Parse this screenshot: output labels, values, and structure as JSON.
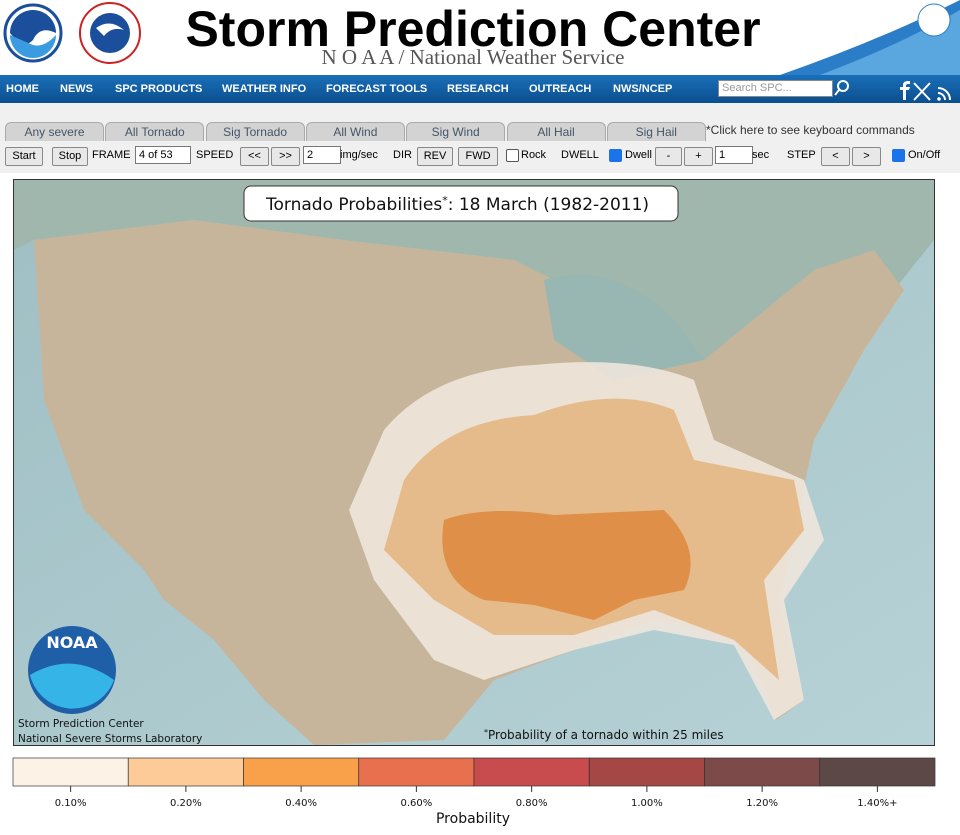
{
  "header": {
    "title": "Storm Prediction Center",
    "subtitle": "N O A A / National Weather Service"
  },
  "nav": {
    "items": [
      "HOME",
      "NEWS",
      "SPC PRODUCTS",
      "WEATHER INFO",
      "FORECAST TOOLS",
      "RESEARCH",
      "OUTREACH",
      "NWS/NCEP"
    ],
    "search_placeholder": "Search SPC..."
  },
  "tabs": {
    "items": [
      "Any severe",
      "All Tornado",
      "Sig Tornado",
      "All Wind",
      "Sig Wind",
      "All Hail",
      "Sig Hail"
    ],
    "keyboard_note": "*Click here to see keyboard commands"
  },
  "controls": {
    "start": "Start",
    "stop": "Stop",
    "frame_label": "FRAME",
    "frame_value": "4 of 53",
    "speed_label": "SPEED",
    "speed_down": "<<",
    "speed_up": ">>",
    "speed_value": "2",
    "speed_unit": "img/sec",
    "dir_label": "DIR",
    "rev": "REV",
    "fwd": "FWD",
    "rock": "Rock",
    "dwell_label": "DWELL",
    "dwell": "Dwell",
    "minus": "-",
    "plus": "+",
    "dwell_value": "1",
    "dwell_unit": "sec",
    "step_label": "STEP",
    "step_prev": "<",
    "step_next": ">",
    "onoff": "On/Off"
  },
  "map": {
    "title": "Tornado Probabilities",
    "title_star": "*",
    "title_rest": ": 18 March (1982-2011)",
    "logo": "NOAA",
    "credits": [
      "Storm Prediction Center",
      "National Severe Storms Laboratory"
    ],
    "footnote_star": "*",
    "footnote": "Probability of a tornado within 25 miles"
  },
  "legend": {
    "title": "Probability",
    "entries": [
      {
        "label": "0.10%",
        "color": "#fdf2e6"
      },
      {
        "label": "0.20%",
        "color": "#fdcb98"
      },
      {
        "label": "0.40%",
        "color": "#f9a04b"
      },
      {
        "label": "0.60%",
        "color": "#e8704f"
      },
      {
        "label": "0.80%",
        "color": "#c84b4e"
      },
      {
        "label": "1.00%",
        "color": "#a54745"
      },
      {
        "label": "1.20%",
        "color": "#7c4a48"
      },
      {
        "label": "1.40%+",
        "color": "#5d4848"
      }
    ]
  }
}
